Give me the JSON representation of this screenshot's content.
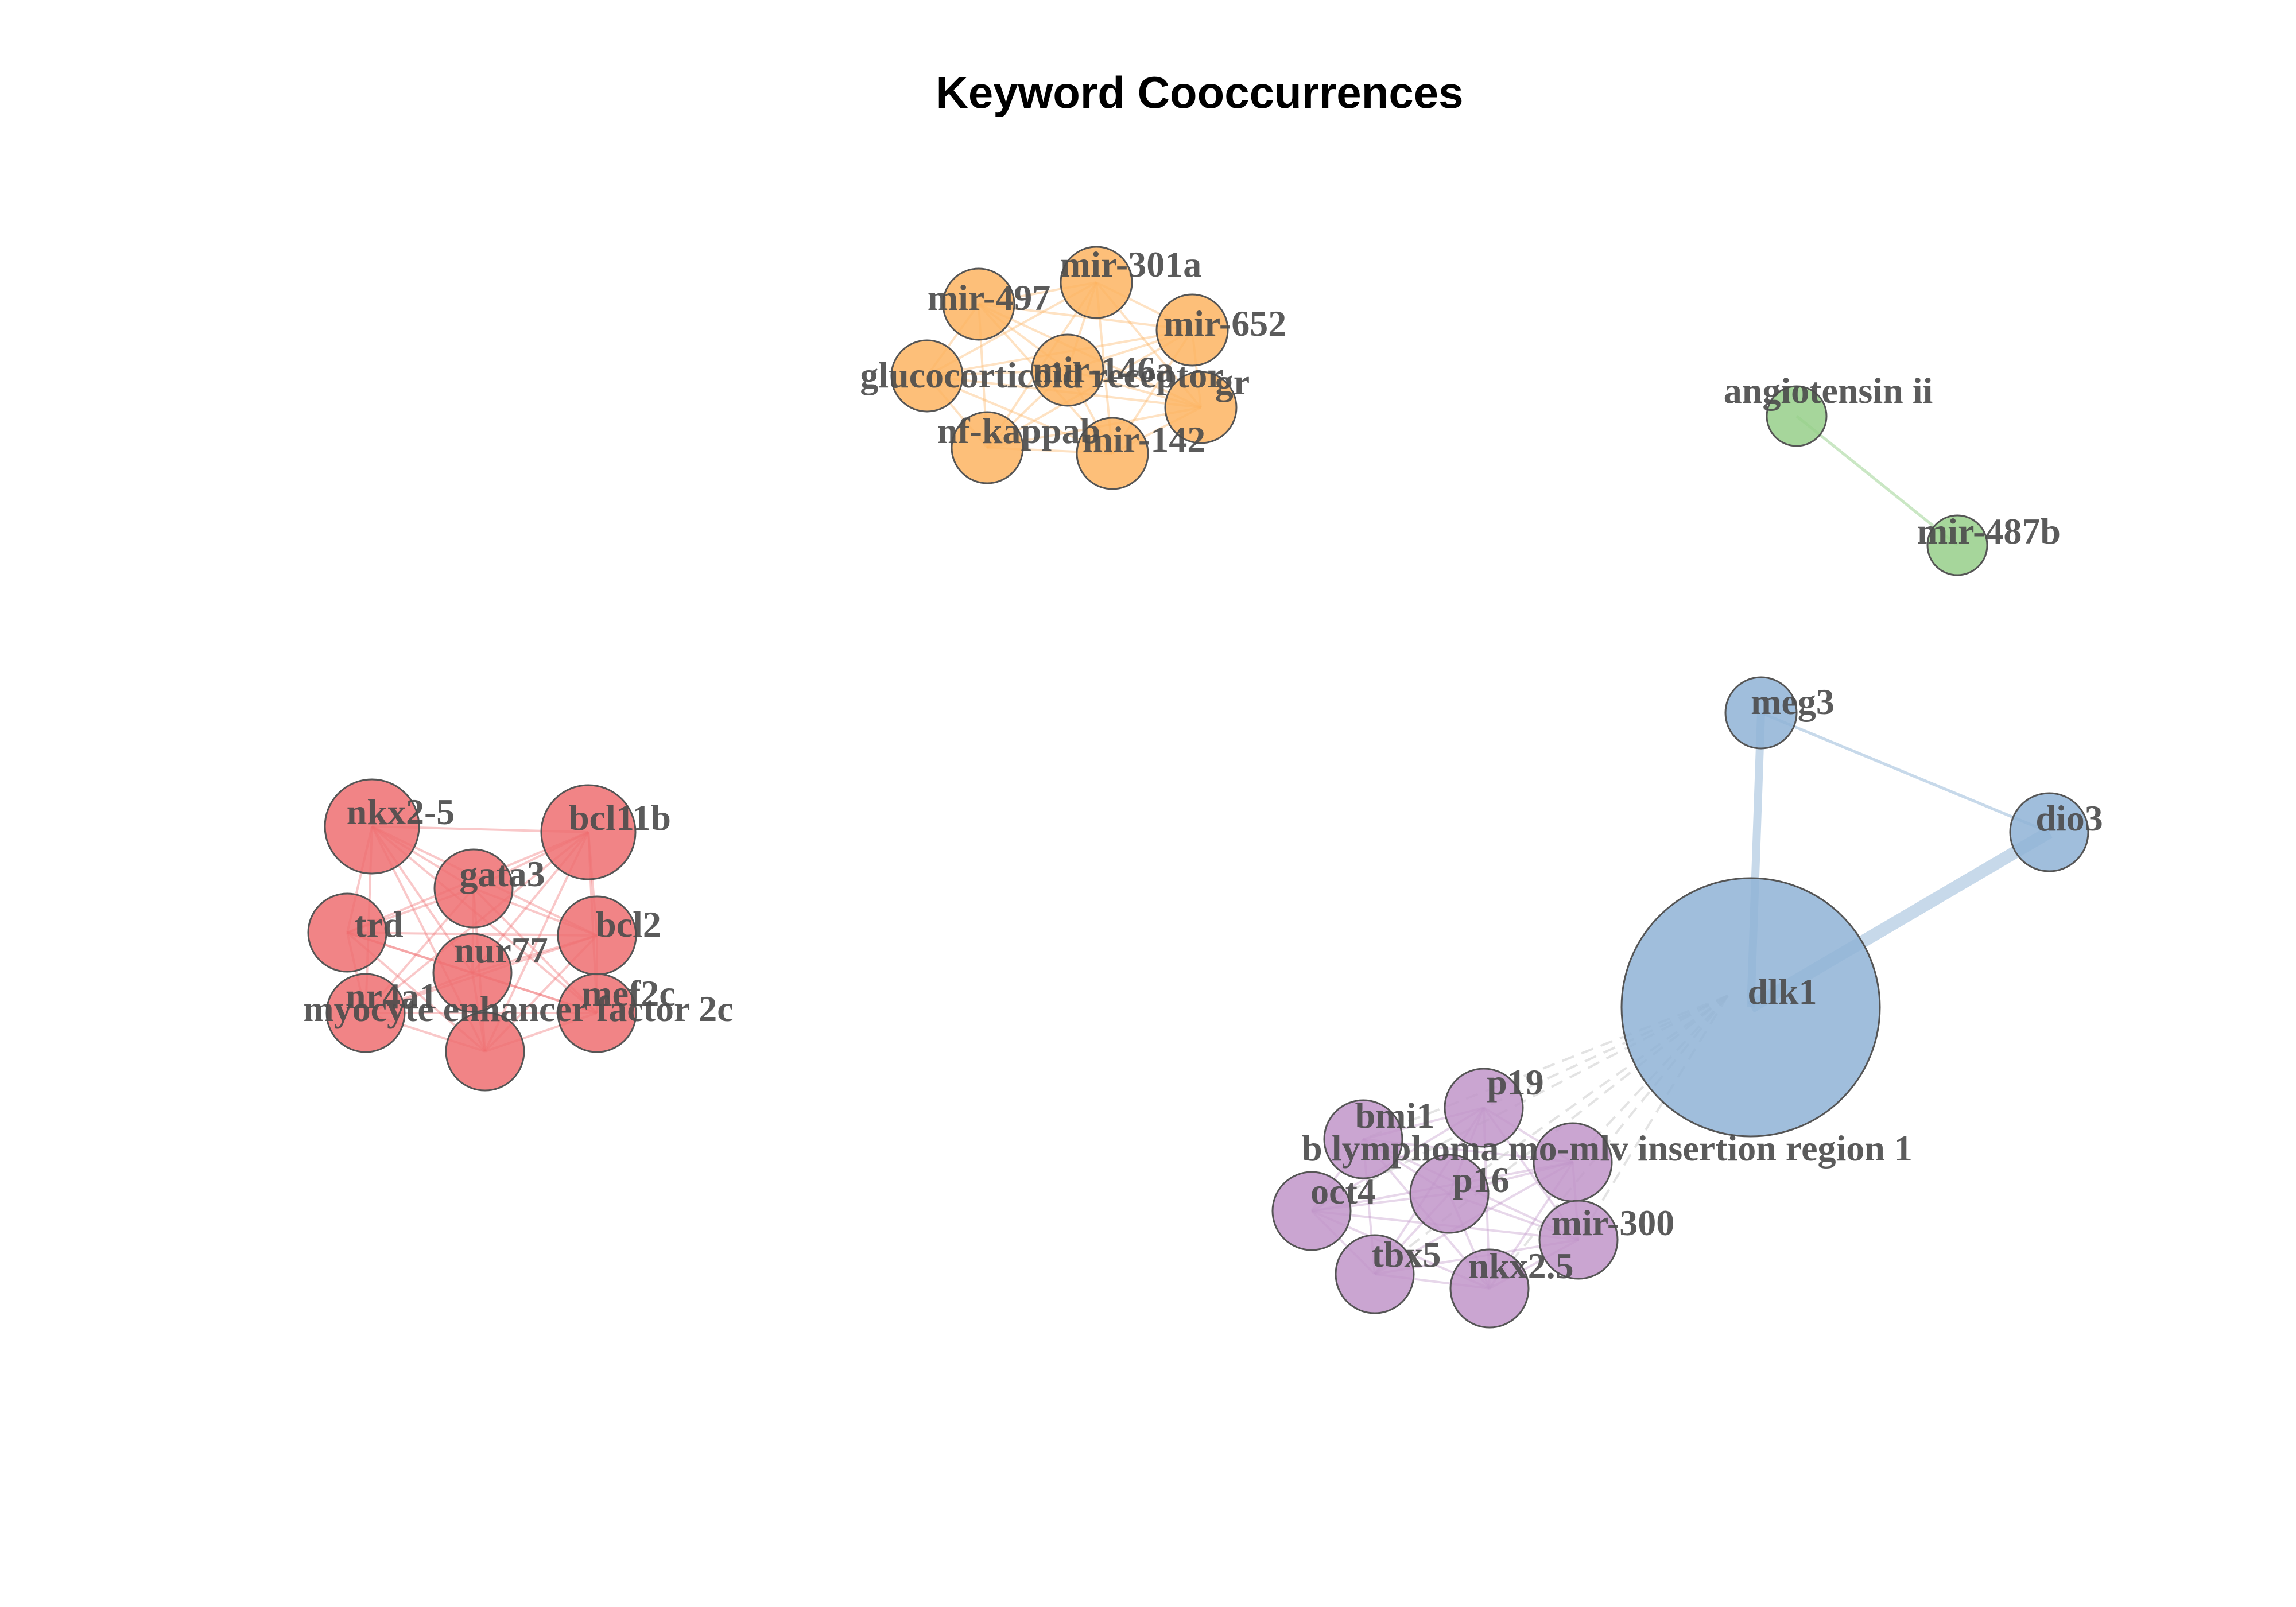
{
  "title": "Keyword Cooccurrences",
  "clusters": [
    {
      "id": "orange",
      "color": "#fdb462",
      "nodes": [
        "mir-301a",
        "mir-497",
        "mir-652",
        "glucocorticoid receptor",
        "mir-146a",
        "gr",
        "nf-kappab",
        "mir-142"
      ]
    },
    {
      "id": "green",
      "color": "#96cf8a",
      "nodes": [
        "angiotensin ii",
        "mir-487b"
      ]
    },
    {
      "id": "blue",
      "color": "#8fb3d6",
      "nodes": [
        "meg3",
        "dio3",
        "dlk1"
      ]
    },
    {
      "id": "red",
      "color": "#ee6f71",
      "nodes": [
        "nkx2-5",
        "bcl11b",
        "gata3",
        "trd",
        "bcl2",
        "nur77",
        "nr4a1",
        "mef2c",
        "myocyte enhancer factor 2c"
      ]
    },
    {
      "id": "purple",
      "color": "#c195c9",
      "nodes": [
        "p19",
        "bmi1",
        "b lymphoma mo-mlv insertion region 1",
        "p16",
        "oct4",
        "mir-300",
        "tbx5",
        "nkx2.5"
      ]
    }
  ],
  "nodes": [
    {
      "id": "mir-301a",
      "label": "mir-301a",
      "cluster": "orange"
    },
    {
      "id": "mir-497",
      "label": "mir-497",
      "cluster": "orange"
    },
    {
      "id": "mir-652",
      "label": "mir-652",
      "cluster": "orange"
    },
    {
      "id": "glucocorticoid receptor",
      "label": "glucocorticoid receptor",
      "cluster": "orange"
    },
    {
      "id": "mir-146a",
      "label": "mir-146a",
      "cluster": "orange"
    },
    {
      "id": "gr",
      "label": "gr",
      "cluster": "orange"
    },
    {
      "id": "nf-kappab",
      "label": "nf-kappab",
      "cluster": "orange"
    },
    {
      "id": "mir-142",
      "label": "mir-142",
      "cluster": "orange"
    },
    {
      "id": "angiotensin ii",
      "label": "angiotensin ii",
      "cluster": "green"
    },
    {
      "id": "mir-487b",
      "label": "mir-487b",
      "cluster": "green"
    },
    {
      "id": "meg3",
      "label": "meg3",
      "cluster": "blue"
    },
    {
      "id": "dio3",
      "label": "dio3",
      "cluster": "blue"
    },
    {
      "id": "dlk1",
      "label": "dlk1",
      "cluster": "blue"
    },
    {
      "id": "nkx2-5",
      "label": "nkx2-5",
      "cluster": "red"
    },
    {
      "id": "bcl11b",
      "label": "bcl11b",
      "cluster": "red"
    },
    {
      "id": "gata3",
      "label": "gata3",
      "cluster": "red"
    },
    {
      "id": "trd",
      "label": "trd",
      "cluster": "red"
    },
    {
      "id": "bcl2",
      "label": "bcl2",
      "cluster": "red"
    },
    {
      "id": "nur77",
      "label": "nur77",
      "cluster": "red"
    },
    {
      "id": "nr4a1",
      "label": "nr4a1",
      "cluster": "red"
    },
    {
      "id": "mef2c",
      "label": "mef2c",
      "cluster": "red"
    },
    {
      "id": "myocyte enhancer factor 2c",
      "label": "myocyte enhancer factor 2c",
      "cluster": "red"
    },
    {
      "id": "p19",
      "label": "p19",
      "cluster": "purple"
    },
    {
      "id": "bmi1",
      "label": "bmi1",
      "cluster": "purple"
    },
    {
      "id": "b lymphoma mo-mlv insertion region 1",
      "label": "b lymphoma mo-mlv insertion region 1",
      "cluster": "purple"
    },
    {
      "id": "p16",
      "label": "p16",
      "cluster": "purple"
    },
    {
      "id": "oct4",
      "label": "oct4",
      "cluster": "purple"
    },
    {
      "id": "mir-300",
      "label": "mir-300",
      "cluster": "purple"
    },
    {
      "id": "tbx5",
      "label": "tbx5",
      "cluster": "purple"
    },
    {
      "id": "nkx2.5",
      "label": "nkx2.5",
      "cluster": "purple"
    }
  ],
  "edges": [
    {
      "source": "dlk1",
      "target": "meg3",
      "cluster": "blue"
    },
    {
      "source": "dlk1",
      "target": "dio3",
      "cluster": "blue"
    },
    {
      "source": "meg3",
      "target": "dio3",
      "cluster": "blue"
    },
    {
      "source": "angiotensin ii",
      "target": "mir-487b",
      "cluster": "green"
    }
  ]
}
